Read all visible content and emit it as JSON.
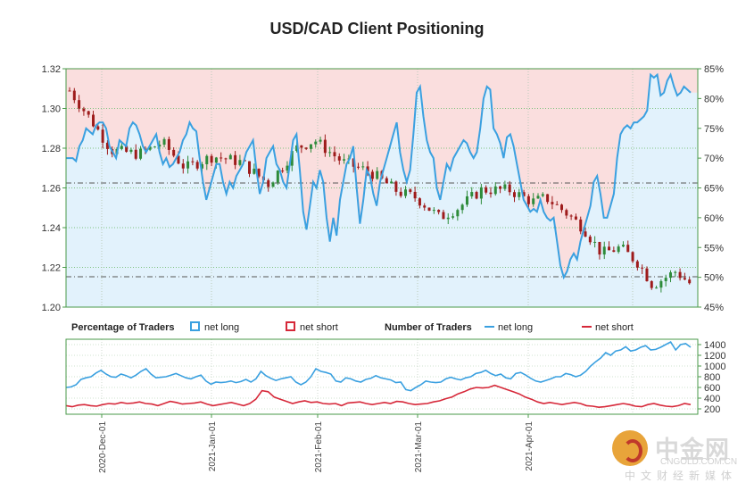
{
  "title": "USD/CAD Client Positioning",
  "chart_data": [
    {
      "type": "candlestick+line",
      "name": "main-panel",
      "left_axis": {
        "ylim": [
          1.2,
          1.32
        ],
        "ticks": [
          "1.32",
          "1.30",
          "1.28",
          "1.26",
          "1.24",
          "1.22",
          "1.20"
        ]
      },
      "right_axis": {
        "ylim": [
          45,
          85
        ],
        "ticks": [
          "85%",
          "80%",
          "75%",
          "70%",
          "65%",
          "60%",
          "55%",
          "50%",
          "45%"
        ]
      },
      "reference_lines": [
        1.2625,
        1.2153
      ],
      "net_long_pct": [
        70.0,
        70.0,
        70.0,
        69.5,
        72.0,
        73.0,
        75.0,
        74.5,
        74.0,
        75.5,
        76.0,
        76.0,
        75.0,
        72.0,
        71.0,
        70.0,
        73.0,
        72.5,
        72.0,
        75.0,
        76.0,
        75.5,
        74.0,
        72.0,
        71.0,
        72.0,
        73.0,
        74.0,
        71.0,
        69.0,
        70.0,
        68.5,
        69.0,
        70.0,
        71.0,
        73.0,
        74.0,
        76.0,
        75.0,
        74.5,
        70.0,
        66.0,
        63.0,
        65.0,
        67.0,
        69.0,
        69.0,
        66.0,
        64.0,
        66.0,
        65.0,
        67.0,
        68.0,
        69.0,
        71.0,
        72.0,
        73.0,
        68.0,
        64.0,
        66.0,
        70.0,
        71.0,
        72.0,
        69.0,
        68.0,
        66.0,
        65.0,
        69.0,
        73.0,
        74.0,
        68.0,
        61.0,
        58.0,
        62.0,
        66.0,
        65.0,
        68.0,
        66.0,
        60.0,
        56.0,
        60.0,
        57.0,
        63.0,
        66.0,
        69.0,
        70.0,
        72.0,
        65.0,
        59.0,
        63.0,
        68.0,
        67.0,
        64.0,
        62.0,
        66.0,
        68.0,
        70.0,
        72.0,
        74.0,
        76.0,
        71.0,
        68.0,
        66.0,
        68.0,
        74.0,
        81.0,
        82.0,
        77.0,
        73.0,
        71.0,
        70.0,
        65.0,
        63.0,
        66.0,
        69.0,
        68.0,
        70.0,
        71.0,
        72.0,
        73.0,
        72.5,
        71.0,
        70.0,
        71.0,
        75.0,
        80.0,
        82.0,
        81.5,
        75.0,
        74.0,
        72.5,
        70.0,
        73.5,
        74.0,
        72.0,
        69.0,
        66.0,
        63.0,
        62.0,
        61.0,
        61.5,
        61.0,
        63.0,
        61.0,
        60.0,
        59.5,
        60.0,
        56.0,
        52.0,
        50.0,
        51.0,
        53.0,
        54.0,
        53.0,
        56.0,
        58.0,
        60.0,
        62.0,
        66.0,
        67.0,
        64.0,
        60.0,
        60.0,
        62.0,
        64.0,
        70.0,
        74.0,
        75.0,
        75.5,
        75.0,
        76.0,
        76.0,
        76.5,
        77.0,
        78.0,
        84.0,
        83.5,
        84.0,
        80.5,
        81.0,
        83.0,
        84.0,
        82.0,
        80.5,
        81.0,
        82.0,
        81.5,
        81.0
      ]
    },
    {
      "type": "line",
      "name": "number-of-traders",
      "ylim": [
        100,
        1500
      ],
      "ticks": [
        "1400",
        "1200",
        "1000",
        "800",
        "600",
        "400",
        "200"
      ],
      "series": [
        {
          "name": "net long",
          "color": "#3aa0e0",
          "values": [
            600,
            610,
            650,
            750,
            780,
            800,
            870,
            920,
            850,
            800,
            790,
            850,
            820,
            780,
            830,
            900,
            950,
            850,
            780,
            790,
            800,
            830,
            860,
            820,
            780,
            760,
            800,
            830,
            720,
            660,
            700,
            690,
            700,
            720,
            690,
            710,
            750,
            700,
            760,
            900,
            820,
            770,
            730,
            760,
            780,
            800,
            700,
            650,
            700,
            800,
            950,
            900,
            880,
            850,
            720,
            700,
            780,
            760,
            720,
            700,
            750,
            770,
            820,
            780,
            760,
            740,
            690,
            700,
            560,
            540,
            600,
            650,
            720,
            700,
            690,
            700,
            760,
            790,
            760,
            740,
            780,
            800,
            860,
            880,
            920,
            860,
            820,
            850,
            780,
            760,
            860,
            880,
            830,
            770,
            720,
            700,
            730,
            760,
            800,
            800,
            860,
            840,
            800,
            830,
            900,
            1000,
            1080,
            1150,
            1250,
            1200,
            1280,
            1300,
            1360,
            1280,
            1300,
            1350,
            1380,
            1300,
            1310,
            1350,
            1400,
            1450,
            1300,
            1400,
            1420,
            1350
          ]
        },
        {
          "name": "net short",
          "color": "#d62839",
          "values": [
            260,
            240,
            270,
            280,
            260,
            250,
            280,
            300,
            290,
            320,
            300,
            310,
            330,
            300,
            290,
            260,
            300,
            340,
            320,
            290,
            300,
            310,
            330,
            290,
            260,
            280,
            300,
            320,
            290,
            260,
            300,
            380,
            540,
            520,
            420,
            380,
            340,
            300,
            330,
            350,
            320,
            330,
            300,
            290,
            300,
            260,
            310,
            320,
            330,
            300,
            280,
            300,
            320,
            300,
            340,
            330,
            300,
            280,
            290,
            300,
            330,
            350,
            390,
            420,
            480,
            520,
            570,
            600,
            590,
            600,
            640,
            600,
            560,
            520,
            480,
            420,
            380,
            330,
            300,
            320,
            300,
            280,
            300,
            320,
            300,
            260,
            250,
            230,
            240,
            260,
            280,
            300,
            280,
            250,
            240,
            280,
            300,
            270,
            250,
            240,
            260,
            300,
            280
          ]
        }
      ]
    }
  ],
  "legend": {
    "pct_title": "Percentage of Traders",
    "pct_long": "net long",
    "pct_short": "net short",
    "num_title": "Number of Traders",
    "num_long": "net long",
    "num_short": "net short"
  },
  "x_labels": [
    "2020-Dec-01",
    "2021-Jan-01",
    "2021-Feb-01",
    "2021-Mar-01",
    "2021-Apr-01"
  ],
  "colors": {
    "long": "#3aa0e0",
    "short": "#d62839",
    "bull": "#2e8b3a",
    "bear": "#9e1b1b",
    "pink": "#fadede",
    "lightblue": "#e2f2fc",
    "grid": "#7fc27f"
  },
  "watermark": {
    "cn": "中金网",
    "site": "CNGOLD.COM.CN",
    "sub": "中文财经新媒体"
  }
}
